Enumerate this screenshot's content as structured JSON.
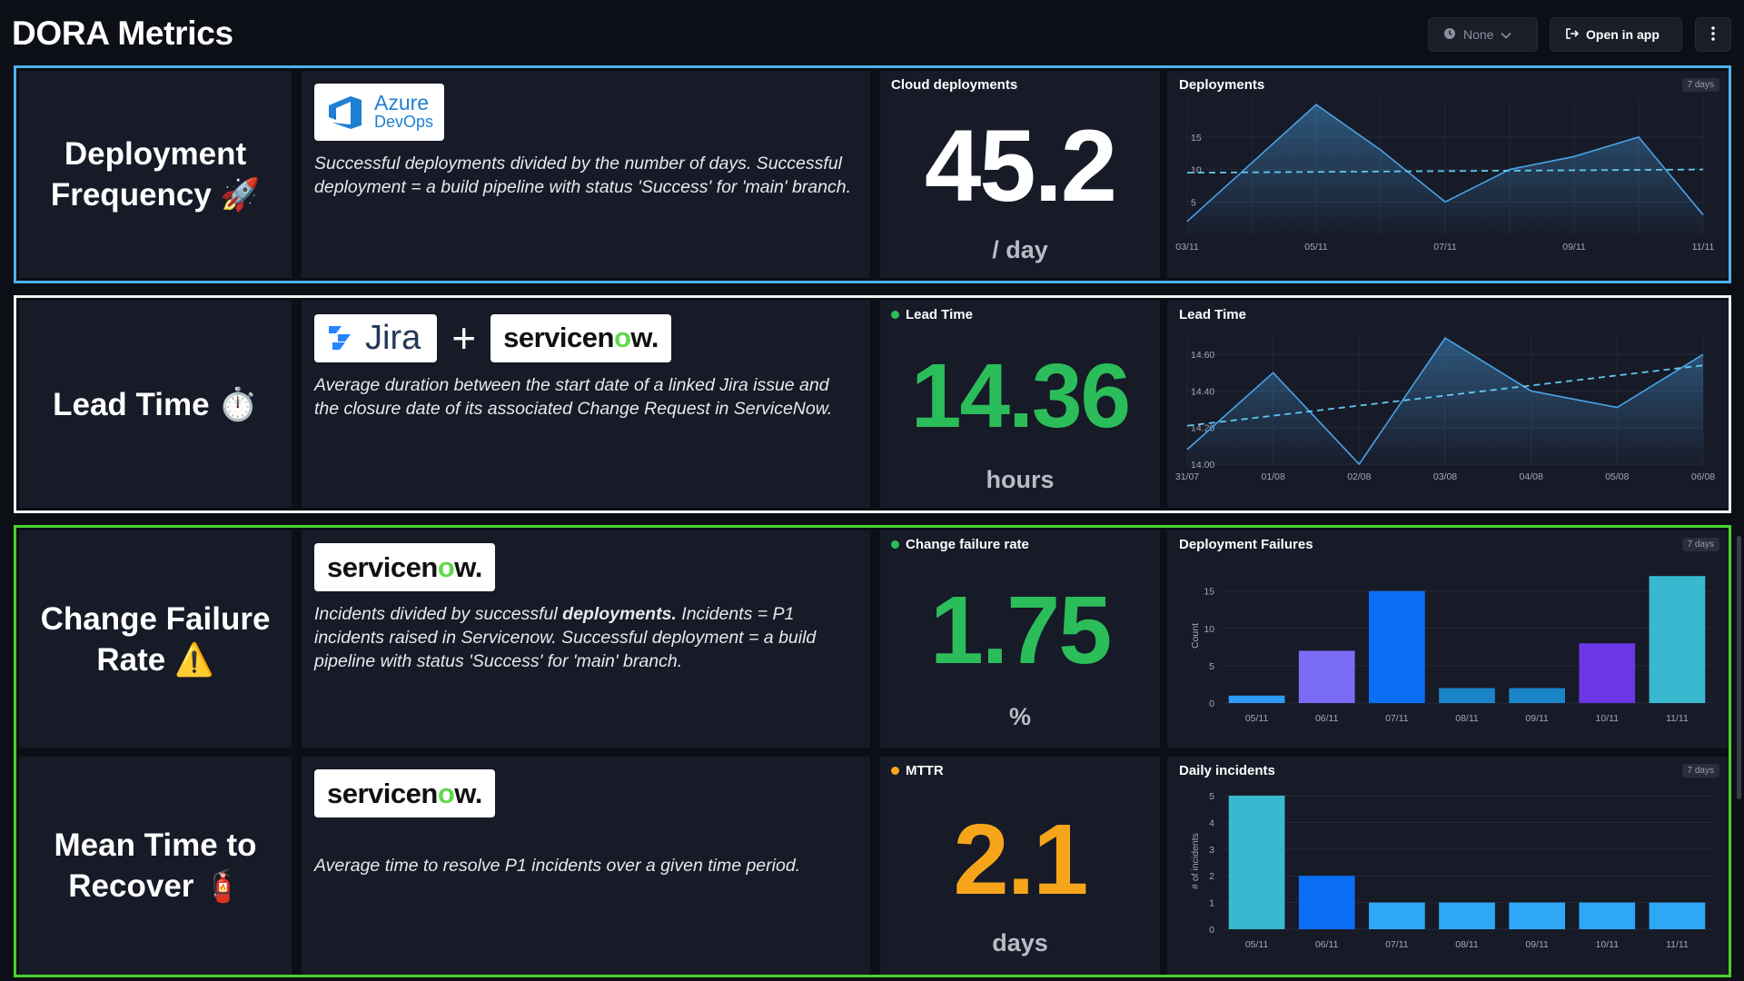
{
  "header": {
    "title": "DORA Metrics",
    "time_filter": "None",
    "open_in_app": "Open in app"
  },
  "rows": {
    "deployment_frequency": {
      "name_line1": "Deployment",
      "name_line2": "Frequency 🚀",
      "logo_line1": "Azure",
      "logo_line2": "DevOps",
      "description": "Successful deployments divided by the number of days. Successful deployment = a build pipeline with status 'Success' for 'main' branch.",
      "stat_label": "Cloud deployments",
      "stat_value": "45.2",
      "stat_unit": "/ day",
      "chart_title": "Deployments",
      "chart_badge": "7 days"
    },
    "lead_time": {
      "name": "Lead Time ⏱️",
      "logo_jira": "Jira",
      "logo_plus": "+",
      "logo_servicenow_a": "servicen",
      "logo_servicenow_o": "o",
      "logo_servicenow_b": "w.",
      "description": "Average duration between the start date of a linked Jira issue and the closure date of its associated Change Request in ServiceNow.",
      "stat_label": "Lead Time",
      "stat_value": "14.36",
      "stat_unit": "hours",
      "chart_title": "Lead Time"
    },
    "change_failure_rate": {
      "name_line1": "Change Failure",
      "name_line2": "Rate ⚠️",
      "logo_servicenow_a": "servicen",
      "logo_servicenow_o": "o",
      "logo_servicenow_b": "w.",
      "description_part1": "Incidents divided by successful ",
      "description_bold": "deployments.",
      "description_part2": " Incidents = P1 incidents raised in Servicenow. Successful deployment = a build pipeline with status 'Success' for 'main' branch.",
      "stat_label": "Change failure rate",
      "stat_value": "1.75",
      "stat_unit": "%",
      "chart_title": "Deployment Failures",
      "chart_badge": "7 days"
    },
    "mttr": {
      "name_line1": "Mean Time to",
      "name_line2": "Recover 🧯",
      "logo_servicenow_a": "servicen",
      "logo_servicenow_o": "o",
      "logo_servicenow_b": "w.",
      "description": "Average time to resolve P1 incidents over a given time period.",
      "stat_label": "MTTR",
      "stat_value": "2.1",
      "stat_unit": "days",
      "chart_title": "Daily incidents",
      "chart_badge": "7 days"
    }
  },
  "colors": {
    "df_border": "#4cb3ef",
    "lt_border": "#f2f2f2",
    "cf_border": "#4bd12d",
    "green_value": "#2bbd5a",
    "orange_value": "#f6a51b",
    "status_green": "#2bbd5a",
    "status_orange": "#f6a51b"
  },
  "chart_data": [
    {
      "type": "area",
      "title": "Deployments",
      "x": [
        "03/11",
        "04/11",
        "05/11",
        "06/11",
        "07/11",
        "08/11",
        "09/11",
        "10/11",
        "11/11"
      ],
      "xticks": [
        "03/11",
        "05/11",
        "07/11",
        "09/11",
        "11/11"
      ],
      "series": [
        {
          "values": [
            2,
            11,
            20,
            13,
            5,
            10,
            12,
            15,
            3
          ]
        }
      ],
      "trend": [
        9.5,
        10
      ],
      "yticks": [
        5,
        10,
        15
      ],
      "ylim": [
        0,
        21
      ],
      "grid": true
    },
    {
      "type": "area",
      "title": "Lead Time",
      "x": [
        "31/07",
        "01/08",
        "02/08",
        "03/08",
        "04/08",
        "05/08",
        "06/08"
      ],
      "xticks": [
        "31/07",
        "01/08",
        "02/08",
        "03/08",
        "04/08",
        "05/08",
        "06/08"
      ],
      "series": [
        {
          "values": [
            14.08,
            14.5,
            14.0,
            14.69,
            14.4,
            14.31,
            14.6
          ]
        }
      ],
      "trend": [
        14.21,
        14.54
      ],
      "yticks": [
        "14.00",
        "14.20",
        "14.40",
        "14.60"
      ],
      "ylim": [
        14.0,
        14.72
      ],
      "grid": true
    },
    {
      "type": "bar",
      "title": "Deployment Failures",
      "categories": [
        "05/11",
        "06/11",
        "07/11",
        "08/11",
        "09/11",
        "10/11",
        "11/11"
      ],
      "values": [
        1,
        7,
        15,
        2,
        2,
        8,
        17
      ],
      "colors": [
        "#2e9bf5",
        "#7b6cf6",
        "#0b6ff5",
        "#1a84c9",
        "#1a84c9",
        "#6b36e6",
        "#38b9cf"
      ],
      "ylabel": "Count",
      "yticks": [
        0,
        5,
        10,
        15
      ],
      "ylim": [
        0,
        18
      ],
      "grid": true
    },
    {
      "type": "bar",
      "title": "Daily incidents",
      "categories": [
        "05/11",
        "06/11",
        "07/11",
        "08/11",
        "09/11",
        "10/11",
        "11/11"
      ],
      "values": [
        5,
        2,
        1,
        1,
        1,
        1,
        1
      ],
      "colors": [
        "#38b9cf",
        "#0b6ff5",
        "#2ea8f6",
        "#2ea8f6",
        "#2ea8f6",
        "#2ea8f6",
        "#2ea8f6"
      ],
      "ylabel": "# of incidents",
      "yticks": [
        0,
        1,
        2,
        3,
        4,
        5
      ],
      "ylim": [
        0,
        5.1
      ],
      "grid": true
    }
  ]
}
